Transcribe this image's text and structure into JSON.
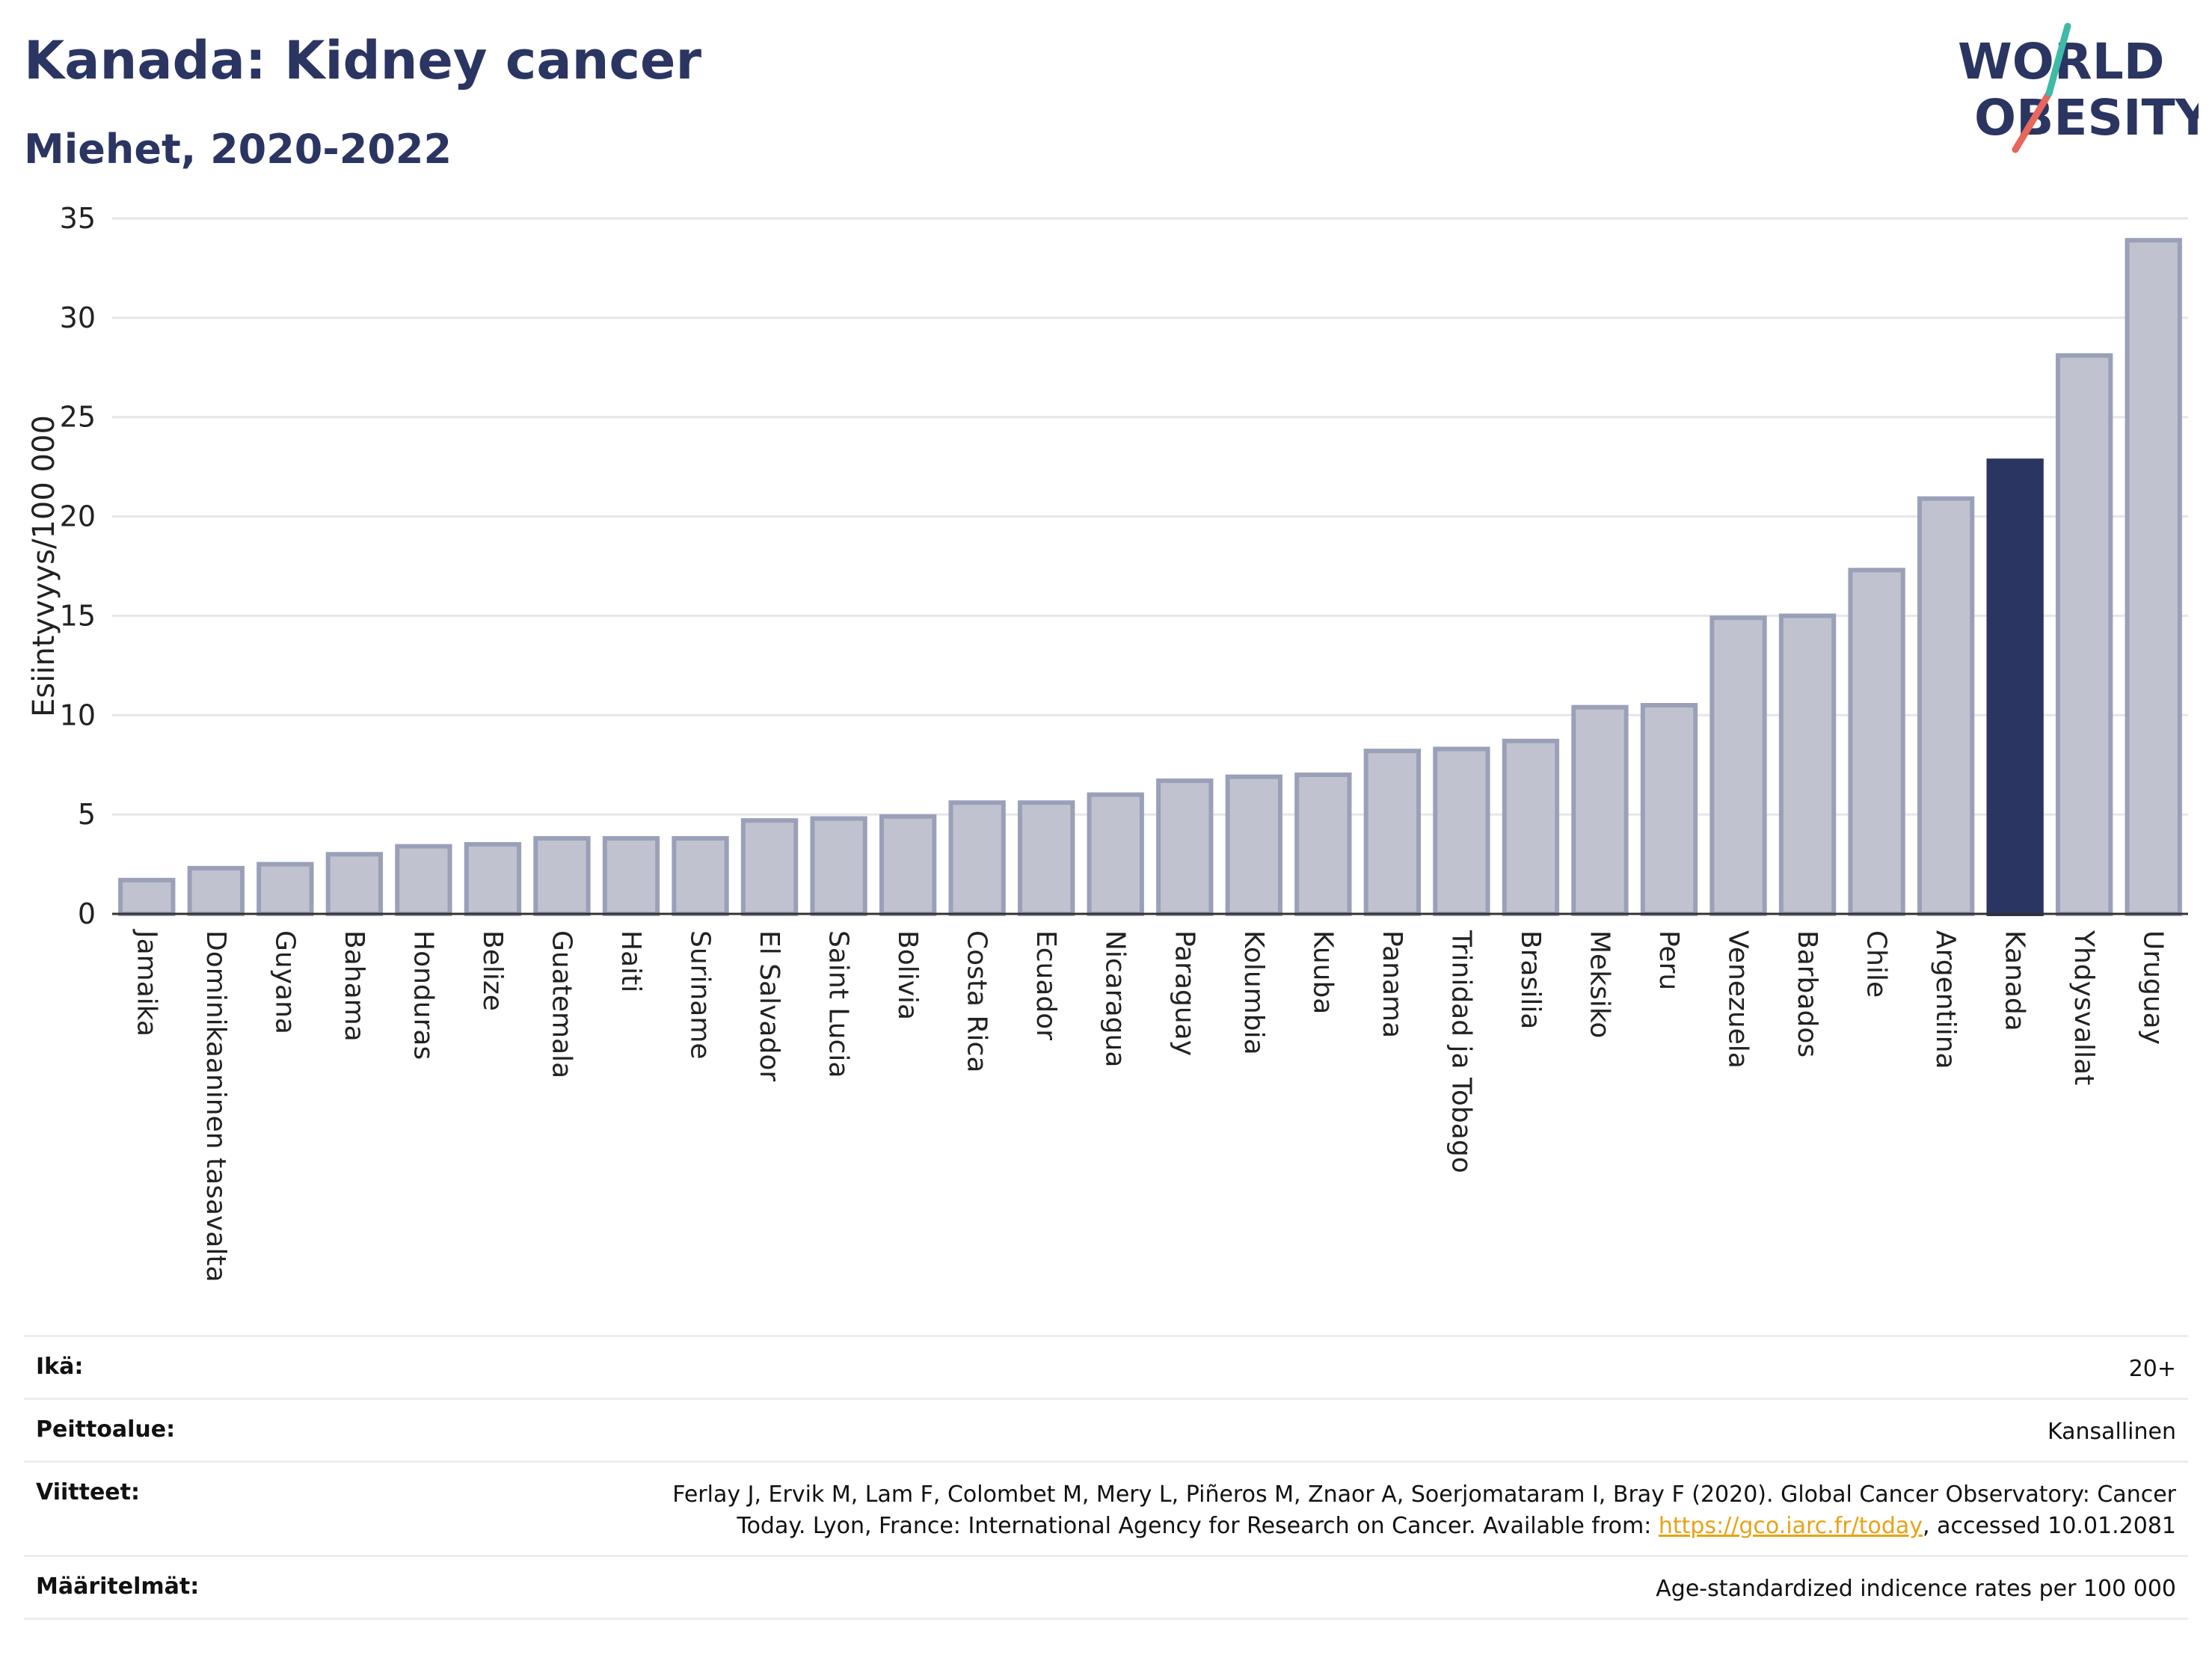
{
  "header": {
    "title": "Kanada: Kidney cancer",
    "subtitle": "Miehet, 2020-2022"
  },
  "logo": {
    "line1": "WORLD",
    "line2": "OBESITY"
  },
  "colors": {
    "bar": "#c0c3cf",
    "bar_border": "#9aa0b8",
    "highlight": "#2b3562",
    "text": "#2b3562"
  },
  "chart_data": {
    "type": "bar",
    "title": "Kanada: Kidney cancer",
    "subtitle": "Miehet, 2020-2022",
    "ylabel": "Esiintyvyys/100 000",
    "xlabel": "",
    "ylim": [
      0,
      35
    ],
    "yticks": [
      0,
      5,
      10,
      15,
      20,
      25,
      30,
      35
    ],
    "grid": true,
    "highlight": "Kanada",
    "categories": [
      "Jamaika",
      "Dominikaaninen tasavalta",
      "Guyana",
      "Bahama",
      "Honduras",
      "Belize",
      "Guatemala",
      "Haiti",
      "Suriname",
      "El Salvador",
      "Saint Lucia",
      "Bolivia",
      "Costa Rica",
      "Ecuador",
      "Nicaragua",
      "Paraguay",
      "Kolumbia",
      "Kuuba",
      "Panama",
      "Trinidad ja Tobago",
      "Brasilia",
      "Meksiko",
      "Peru",
      "Venezuela",
      "Barbados",
      "Chile",
      "Argentiina",
      "Kanada",
      "Yhdysvallat",
      "Uruguay"
    ],
    "values": [
      1.7,
      2.3,
      2.5,
      3.0,
      3.4,
      3.5,
      3.8,
      3.8,
      3.8,
      4.7,
      4.8,
      4.9,
      5.6,
      5.6,
      6.0,
      6.7,
      6.9,
      7.0,
      8.2,
      8.3,
      8.7,
      10.4,
      10.5,
      14.9,
      15.0,
      17.3,
      20.9,
      22.8,
      28.1,
      33.9
    ]
  },
  "info": {
    "age_label": "Ikä:",
    "age_value": "20+",
    "coverage_label": "Peittoalue:",
    "coverage_value": "Kansallinen",
    "refs_label": "Viitteet:",
    "refs_line1": "Ferlay J, Ervik M, Lam F, Colombet M, Mery L, Piñeros M, Znaor A, Soerjomataram I, Bray F (2020). Global Cancer Observatory: Cancer",
    "refs_line2_pre": "Today. Lyon, France: International Agency for Research on Cancer. Available from: ",
    "refs_link": "https://gco.iarc.fr/today",
    "refs_line2_post": ", accessed 10.01.2081",
    "defs_label": "Määritelmät:",
    "defs_value": "Age-standardized indicence rates per 100 000"
  }
}
